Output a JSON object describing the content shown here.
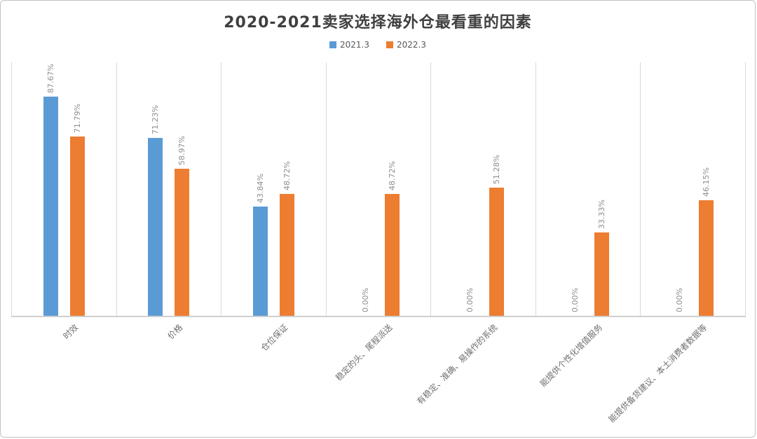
{
  "title": "2020-2021卖家选择海外仓最看重的因素",
  "legend": [
    {
      "label": "2021.3",
      "color": "#5B9BD5"
    },
    {
      "label": "2022.3",
      "color": "#ED7D31"
    }
  ],
  "colors": {
    "series_blue": "#5B9BD5",
    "series_orange": "#ED7D31",
    "title_text": "#3f3f3f",
    "data_label_text": "#8e8e8e",
    "axis_line": "#cfcfcf",
    "panel_separator": "#d9d9d9"
  },
  "chart_data": {
    "type": "bar",
    "title": "2020-2021卖家选择海外仓最看重的因素",
    "xlabel": "",
    "ylabel": "",
    "ylim": [
      0,
      100
    ],
    "grid": "vertical-panel-separators-only",
    "legend_position": "top-center",
    "data_label_rotation": 90,
    "category_label_rotation": 45,
    "categories": [
      "时效",
      "价格",
      "仓位保证",
      "稳定的头、尾程派送",
      "有稳定、准确、易操作的系统",
      "能提供个性化增值服务",
      "能提供备货建议、本土消费者数据等"
    ],
    "series": [
      {
        "name": "2021.3",
        "color": "#5B9BD5",
        "values": [
          87.67,
          71.23,
          43.84,
          0.0,
          0.0,
          0.0,
          0.0
        ],
        "labels": [
          "87.67%",
          "71.23%",
          "43.84%",
          "0.00%",
          "0.00%",
          "0.00%",
          "0.00%"
        ]
      },
      {
        "name": "2022.3",
        "color": "#ED7D31",
        "values": [
          71.79,
          58.97,
          48.72,
          48.72,
          51.28,
          33.33,
          46.15
        ],
        "labels": [
          "71.79%",
          "58.97%",
          "48.72%",
          "48.72%",
          "51.28%",
          "33.33%",
          "46.15%"
        ]
      }
    ]
  }
}
